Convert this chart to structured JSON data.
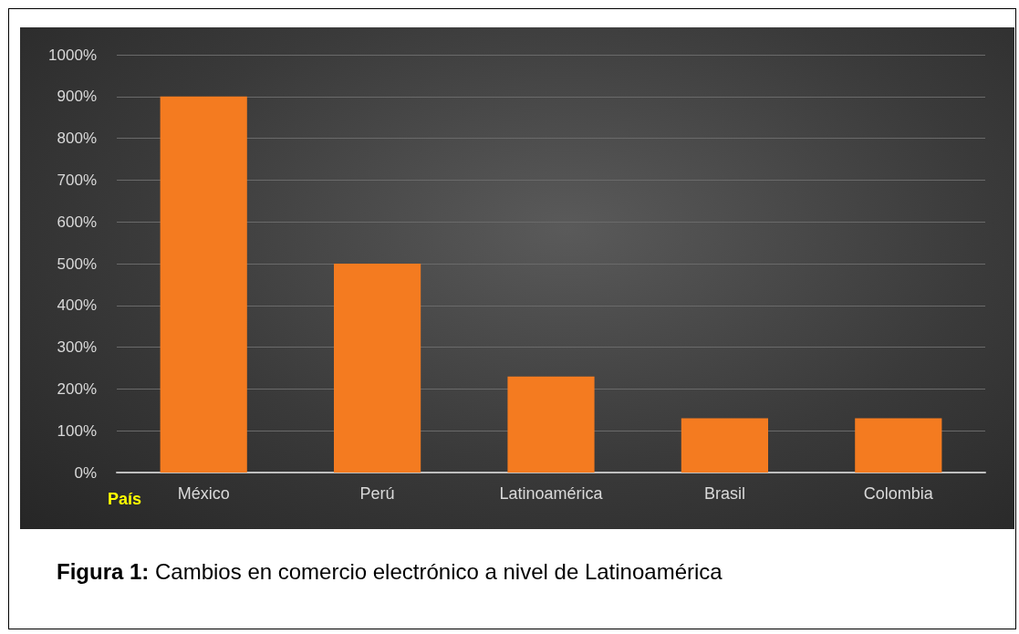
{
  "chart_data": {
    "type": "bar",
    "xlabel": "País",
    "categories": [
      "México",
      "Perú",
      "Latinoamérica",
      "Brasil",
      "Colombia"
    ],
    "values": [
      900,
      500,
      230,
      130,
      130
    ],
    "color": "#f47b20",
    "ylim": [
      0,
      1000
    ],
    "yticks": [
      {
        "value": 0,
        "label": "0%"
      },
      {
        "value": 100,
        "label": "100%"
      },
      {
        "value": 200,
        "label": "200%"
      },
      {
        "value": 300,
        "label": "300%"
      },
      {
        "value": 400,
        "label": "400%"
      },
      {
        "value": 500,
        "label": "500%"
      },
      {
        "value": 600,
        "label": "600%"
      },
      {
        "value": 700,
        "label": "700%"
      },
      {
        "value": 800,
        "label": "800%"
      },
      {
        "value": 900,
        "label": "900%"
      },
      {
        "value": 1000,
        "label": "1000%"
      }
    ],
    "grid": "y",
    "annotations": [
      "Figura 1: Cambios en comercio electrónico a nivel de Latinoamérica"
    ]
  }
}
